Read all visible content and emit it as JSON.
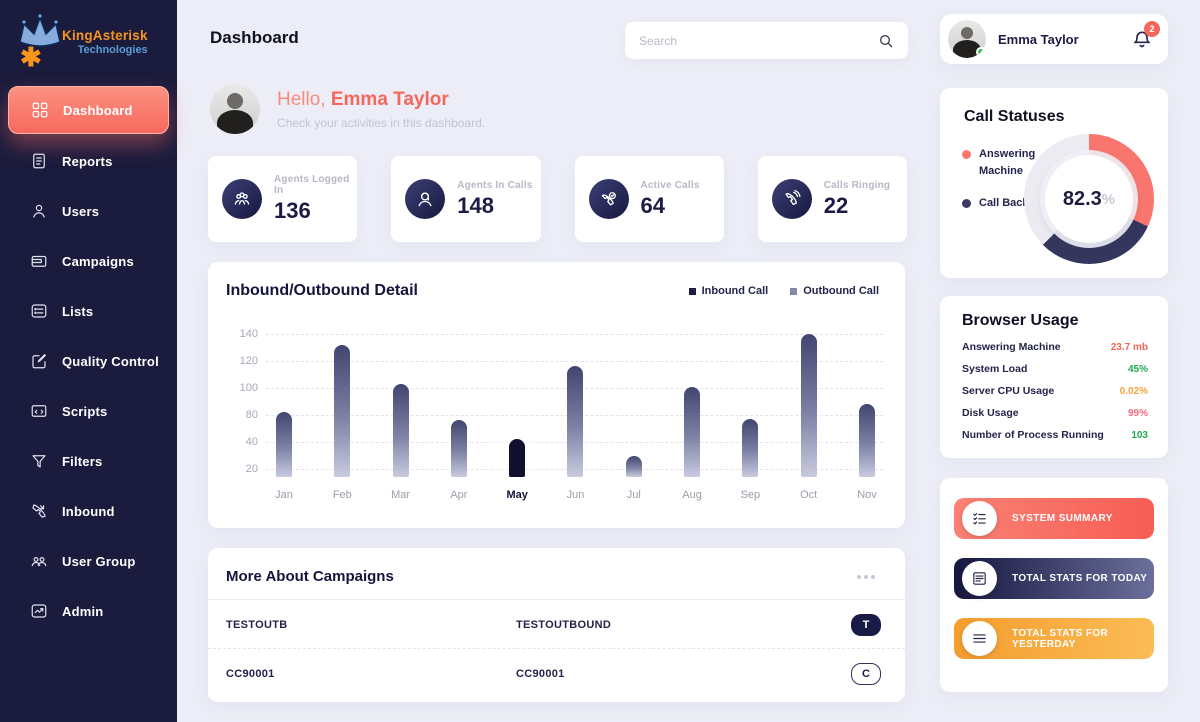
{
  "brand": {
    "name": "KingAsterisk",
    "sub": "Technologies",
    "logo_icon": "crown-asterisk-logo"
  },
  "sidebar": {
    "items": [
      {
        "label": "Dashboard",
        "icon": "dashboard-icon",
        "active": true
      },
      {
        "label": "Reports",
        "icon": "reports-icon",
        "active": false
      },
      {
        "label": "Users",
        "icon": "users-icon",
        "active": false
      },
      {
        "label": "Campaigns",
        "icon": "campaigns-icon",
        "active": false
      },
      {
        "label": "Lists",
        "icon": "lists-icon",
        "active": false
      },
      {
        "label": "Quality Control",
        "icon": "quality-control-icon",
        "active": false
      },
      {
        "label": "Scripts",
        "icon": "scripts-icon",
        "active": false
      },
      {
        "label": "Filters",
        "icon": "filters-icon",
        "active": false
      },
      {
        "label": "Inbound",
        "icon": "inbound-icon",
        "active": false
      },
      {
        "label": "User Group",
        "icon": "user-group-icon",
        "active": false
      },
      {
        "label": "Admin",
        "icon": "admin-icon",
        "active": false
      }
    ]
  },
  "header": {
    "title": "Dashboard",
    "search_placeholder": "Search",
    "search_icon": "search-icon"
  },
  "greeting": {
    "hello": "Hello,",
    "name": "Emma Taylor",
    "subtitle": "Check your activities in this dashboard."
  },
  "stats": [
    {
      "label": "Agents Logged In",
      "value": "136",
      "icon": "agents-logged-in-icon"
    },
    {
      "label": "Agents In Calls",
      "value": "148",
      "icon": "agents-in-calls-icon"
    },
    {
      "label": "Active Calls",
      "value": "64",
      "icon": "active-calls-icon"
    },
    {
      "label": "Calls Ringing",
      "value": "22",
      "icon": "calls-ringing-icon"
    }
  ],
  "chart_data": {
    "type": "bar",
    "title": "Inbound/Outbound Detail",
    "legend": [
      {
        "label": "Inbound Call",
        "color": "#1c1d46"
      },
      {
        "label": "Outbound Call",
        "color": "#8589a8"
      }
    ],
    "categories": [
      "Jan",
      "Feb",
      "Mar",
      "Apr",
      "May",
      "Jun",
      "Jul",
      "Aug",
      "Sep",
      "Oct",
      "Nov"
    ],
    "values": [
      82,
      132,
      103,
      72,
      44,
      116,
      30,
      101,
      74,
      140,
      88
    ],
    "highlighted_category": "May",
    "yticks": [
      20,
      40,
      80,
      100,
      120,
      140
    ],
    "xlabel": "",
    "ylabel": "",
    "grid": "dashed-horizontal",
    "legend_position": "top-right"
  },
  "campaigns": {
    "title": "More About Campaigns",
    "more_icon": "more-options-icon",
    "rows": [
      {
        "col1": "TESTOUTB",
        "col2": "TESTOUTBOUND",
        "badge": "T",
        "badge_style": "solid"
      },
      {
        "col1": "CC90001",
        "col2": "CC90001",
        "badge": "C",
        "badge_style": "outline"
      }
    ]
  },
  "profile": {
    "name": "Emma Taylor",
    "bell_icon": "bell-icon",
    "notification_count": "2",
    "status": "online"
  },
  "call_statuses": {
    "title": "Call Statuses",
    "center_value": "82.3",
    "center_unit": "%",
    "legend": [
      {
        "label": "Answering Machine",
        "color": "#f8766d"
      },
      {
        "label": "Call Back",
        "color": "#3a3b63"
      }
    ],
    "segments": [
      {
        "name": "Answering Machine",
        "color": "#f8766d",
        "from_deg": 0,
        "to_deg": 115
      },
      {
        "name": "Call Back",
        "color": "#34365e",
        "from_deg": 115,
        "to_deg": 225
      },
      {
        "name": "Remaining",
        "color": "#ebebf1",
        "from_deg": 225,
        "to_deg": 360
      }
    ]
  },
  "browser_usage": {
    "title": "Browser Usage",
    "rows": [
      {
        "label": "Answering Machine",
        "value": "23.7 mb",
        "color": "#f3685a"
      },
      {
        "label": "System Load",
        "value": "45%",
        "color": "#22a84c"
      },
      {
        "label": "Server CPU Usage",
        "value": "0.02%",
        "color": "#f5a43c"
      },
      {
        "label": "Disk Usage",
        "value": "99%",
        "color": "#f06a7e"
      },
      {
        "label": "Number of Process Running",
        "value": "103",
        "color": "#22a84c"
      }
    ]
  },
  "quick_actions": [
    {
      "label": "SYSTEM SUMMARY",
      "icon": "checklist-icon",
      "color_from": "#fa8174",
      "color_to": "#f75d54"
    },
    {
      "label": "TOTAL STATS FOR TODAY",
      "icon": "stats-list-icon",
      "color_from": "#16173f",
      "color_to": "#6b6f9b"
    },
    {
      "label": "TOTAL STATS FOR YESTERDAY",
      "icon": "menu-icon",
      "color_from": "#f49d2f",
      "color_to": "#fbbc55"
    }
  ],
  "colors": {
    "accent_coral": "#f3685a",
    "sidebar_bg": "#1a1b3d",
    "page_bg": "#ecedf6",
    "dark_navy": "#16173f",
    "bar_top": "#42456f",
    "bar_bottom": "#c8cbdf",
    "highlight_bar": "#10112f"
  }
}
